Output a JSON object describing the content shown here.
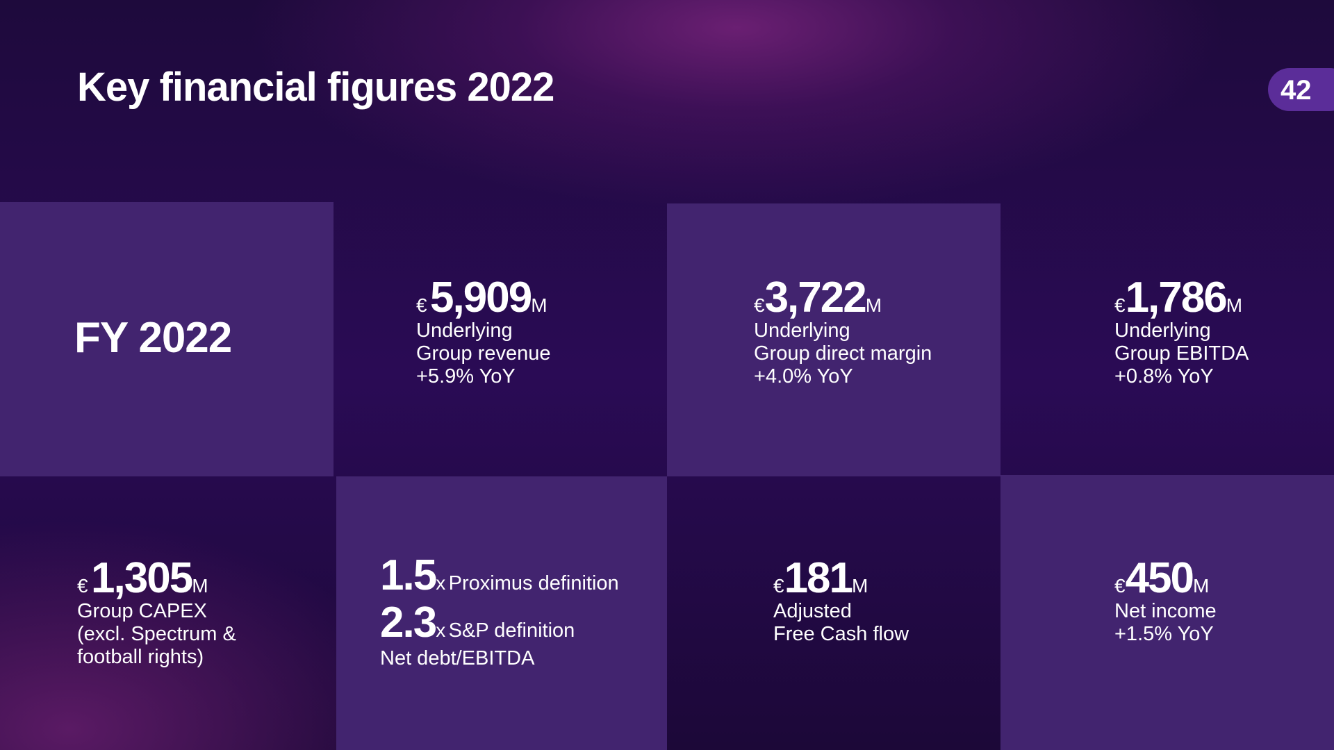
{
  "header": {
    "title": "Key financial figures 2022",
    "page_number": "42"
  },
  "tiles": [
    {
      "label": "FY 2022"
    },
    {
      "currency": "€",
      "value": "5,909",
      "unit": "M",
      "lines": [
        "Underlying",
        "Group revenue",
        "+5.9% YoY"
      ]
    },
    {
      "currency": "€",
      "value": "3,722",
      "unit": "M",
      "lines": [
        "Underlying",
        "Group direct margin",
        "+4.0% YoY"
      ]
    },
    {
      "currency": "€",
      "value": "1,786",
      "unit": "M",
      "lines": [
        "Underlying",
        "Group EBITDA",
        "+0.8% YoY"
      ]
    },
    {
      "currency": "€",
      "value": "1,305",
      "unit": "M",
      "lines": [
        "Group CAPEX",
        "(excl. Spectrum &",
        "football rights)"
      ]
    },
    {
      "rows": [
        {
          "value": "1.5",
          "unit": "x",
          "text": "Proximus definition"
        },
        {
          "value": "2.3",
          "unit": "x",
          "text": "S&P definition"
        }
      ],
      "lines": [
        "Net debt/EBITDA"
      ]
    },
    {
      "currency": "€",
      "value": "181",
      "unit": "M",
      "lines": [
        "Adjusted",
        "Free Cash flow"
      ]
    },
    {
      "currency": "€",
      "value": "450",
      "unit": "M",
      "lines": [
        "Net income",
        "+1.5% YoY"
      ]
    }
  ]
}
